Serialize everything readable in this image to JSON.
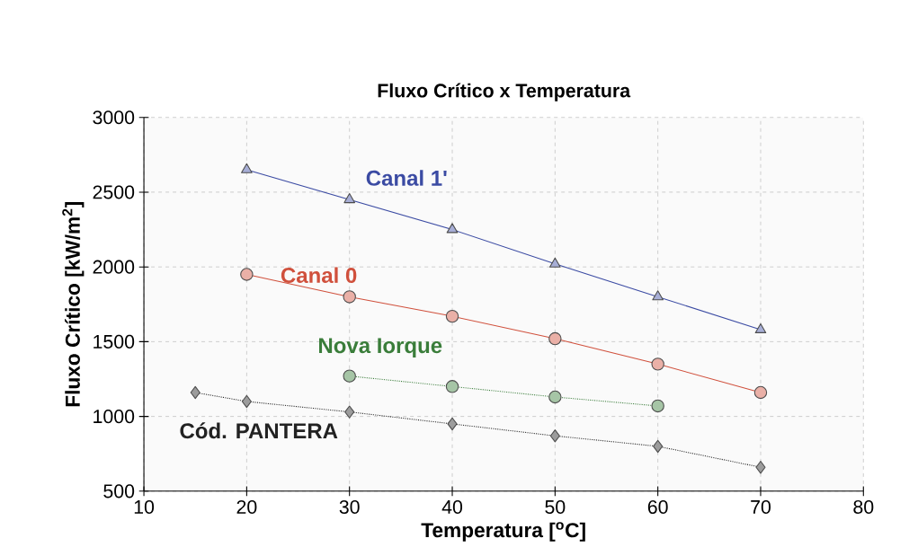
{
  "chart_data": {
    "type": "line",
    "title": "Fluxo Crítico  x  Temperatura",
    "xlabel": "Temperatura [$^{o}$C]",
    "ylabel": "Fluxo Crítico [kW/m$^{2}$]",
    "xlim": [
      10,
      80
    ],
    "xticks": [
      10,
      20,
      30,
      40,
      50,
      60,
      70,
      80
    ],
    "ylim": [
      500,
      3000
    ],
    "yticks": [
      500,
      1000,
      1500,
      2000,
      2500,
      3000
    ],
    "grid": true,
    "series": [
      {
        "name": "Canal 1'",
        "color": "#3b4ba3",
        "marker": "triangle",
        "line_style": "solid",
        "x": [
          20,
          30,
          40,
          50,
          60,
          70
        ],
        "values": [
          2650,
          2450,
          2250,
          2020,
          1800,
          1580
        ]
      },
      {
        "name": "Canal 0",
        "color": "#d0503c",
        "marker": "circle",
        "line_style": "solid",
        "x": [
          20,
          30,
          40,
          50,
          60,
          70
        ],
        "values": [
          1950,
          1800,
          1670,
          1520,
          1350,
          1160
        ]
      },
      {
        "name": "Nova Iorque",
        "color": "#3a7d3a",
        "marker": "circle",
        "line_style": "dotted",
        "x": [
          30,
          40,
          50,
          60
        ],
        "values": [
          1270,
          1200,
          1130,
          1070
        ]
      },
      {
        "name": "Cód. PANTERA",
        "color": "#222222",
        "marker": "diamond",
        "line_style": "dotted",
        "x": [
          15,
          20,
          30,
          40,
          50,
          60,
          70
        ],
        "values": [
          1160,
          1100,
          1030,
          950,
          870,
          800,
          660
        ]
      }
    ]
  }
}
